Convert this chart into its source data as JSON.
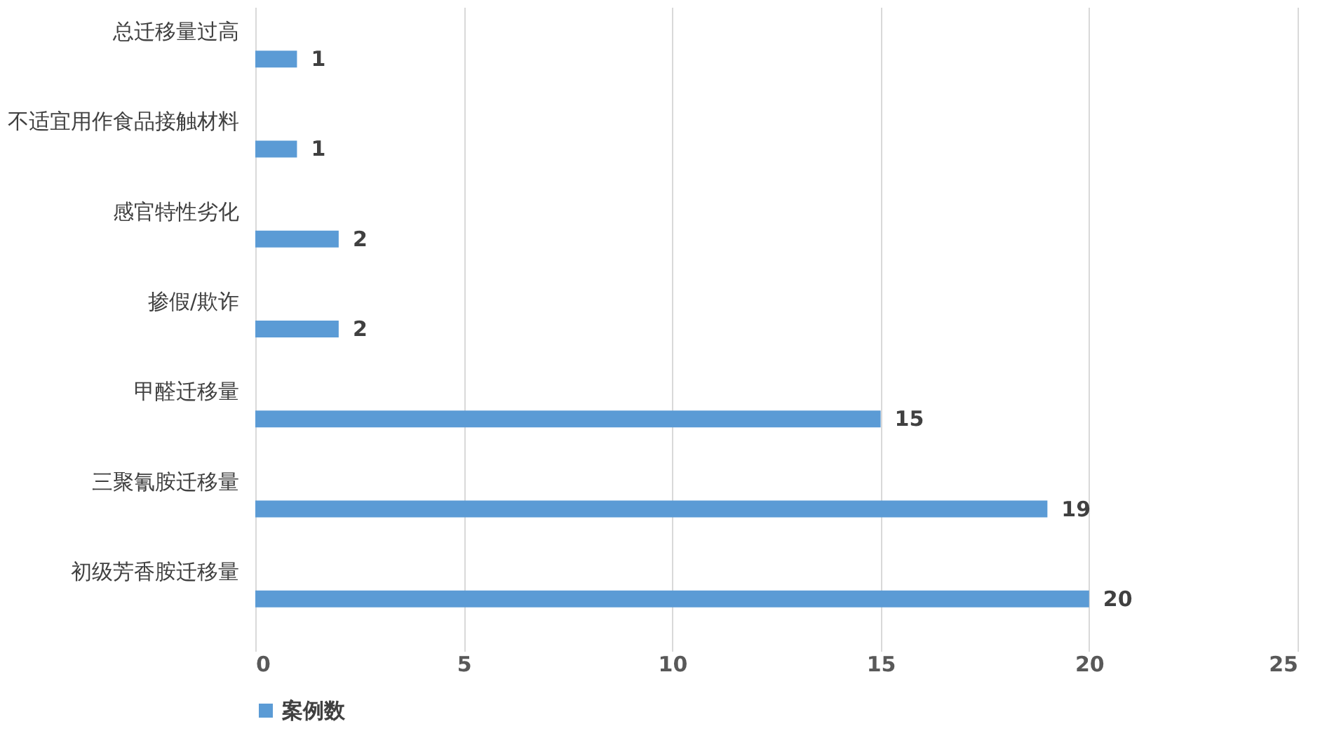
{
  "chart_data": {
    "type": "bar",
    "orientation": "horizontal",
    "categories": [
      "总迁移量过高",
      "不适宜用作食品接触材料",
      "感官特性劣化",
      "掺假/欺诈",
      "甲醛迁移量",
      "三聚氰胺迁移量",
      "初级芳香胺迁移量"
    ],
    "series": [
      {
        "name": "案例数",
        "color": "#5b9bd5",
        "values": [
          1,
          1,
          2,
          2,
          15,
          19,
          20
        ]
      }
    ],
    "xlim": [
      0,
      25
    ],
    "xticks": [
      0,
      5,
      10,
      15,
      20,
      25
    ],
    "grid": "x",
    "legend": "bottom",
    "data_labels": true
  }
}
